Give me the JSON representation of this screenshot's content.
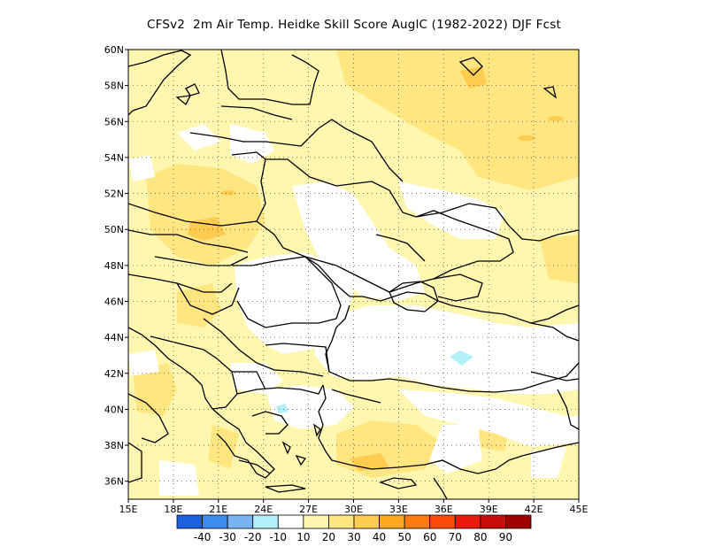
{
  "title": "CFSv2  2m Air Temp. Heidke Skill Score AuglC (1982-2022) DJF Fcst",
  "map": {
    "lon_range": [
      15,
      45
    ],
    "lat_range": [
      35,
      60
    ],
    "lat_ticks": [
      {
        "value": 60,
        "label": "60N"
      },
      {
        "value": 58,
        "label": "58N"
      },
      {
        "value": 56,
        "label": "56N"
      },
      {
        "value": 54,
        "label": "54N"
      },
      {
        "value": 52,
        "label": "52N"
      },
      {
        "value": 50,
        "label": "50N"
      },
      {
        "value": 48,
        "label": "48N"
      },
      {
        "value": 46,
        "label": "46N"
      },
      {
        "value": 44,
        "label": "44N"
      },
      {
        "value": 42,
        "label": "42N"
      },
      {
        "value": 40,
        "label": "40N"
      },
      {
        "value": 38,
        "label": "38N"
      },
      {
        "value": 36,
        "label": "36N"
      }
    ],
    "lon_ticks": [
      {
        "value": 15,
        "label": "15E"
      },
      {
        "value": 18,
        "label": "18E"
      },
      {
        "value": 21,
        "label": "21E"
      },
      {
        "value": 24,
        "label": "24E"
      },
      {
        "value": 27,
        "label": "27E"
      },
      {
        "value": 30,
        "label": "30E"
      },
      {
        "value": 33,
        "label": "33E"
      },
      {
        "value": 36,
        "label": "36E"
      },
      {
        "value": 39,
        "label": "39E"
      },
      {
        "value": 42,
        "label": "42E"
      },
      {
        "value": 45,
        "label": "45E"
      }
    ],
    "grid": true
  },
  "colorbar": {
    "colors": [
      "#1c60e0",
      "#3a8cf0",
      "#78b4f4",
      "#b4f0fa",
      "#ffffff",
      "#fff6b0",
      "#ffe680",
      "#ffcc50",
      "#ffa820",
      "#ff7a10",
      "#ff4a0a",
      "#e81a0a",
      "#c80a0a",
      "#a00000"
    ],
    "labels": [
      "-40",
      "-30",
      "-20",
      "-10",
      "10",
      "20",
      "30",
      "40",
      "50",
      "60",
      "70",
      "80",
      "90"
    ]
  },
  "colors": {
    "level10": "#fff6b0",
    "level20": "#ffe680",
    "level30": "#ffcc50",
    "level_neg10": "#b4f0fa"
  }
}
